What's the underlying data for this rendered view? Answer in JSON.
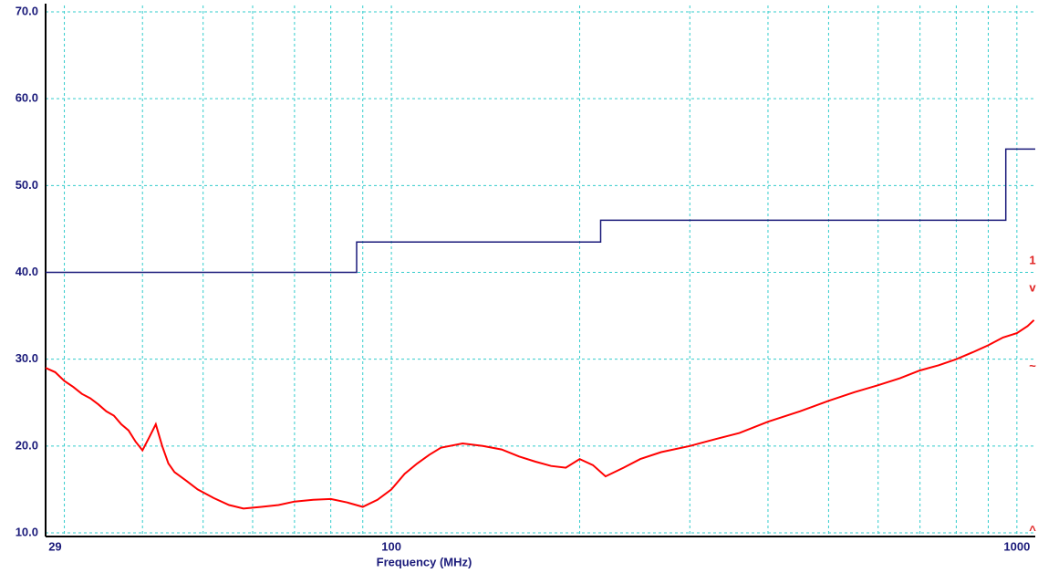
{
  "chart_data": {
    "type": "line",
    "x_label": "Frequency (MHz)",
    "xlog": true,
    "xlim": [
      28,
      1070
    ],
    "xticks": [
      29,
      100,
      1000
    ],
    "xgrid": [
      30,
      40,
      50,
      60,
      70,
      80,
      90,
      100,
      200,
      300,
      400,
      500,
      600,
      700,
      800,
      900,
      1000
    ],
    "ylim": [
      10,
      70
    ],
    "yticks": [
      {
        "value": 10,
        "label": "10.0"
      },
      {
        "value": 20,
        "label": "20.0"
      },
      {
        "value": 30,
        "label": "30.0"
      },
      {
        "value": 40,
        "label": "40.0"
      },
      {
        "value": 50,
        "label": "50.0"
      },
      {
        "value": 60,
        "label": "60.0"
      },
      {
        "value": 70,
        "label": "70.0"
      }
    ],
    "grid": true,
    "series": [
      {
        "color": "#1a1a7a",
        "x": [
          28,
          88,
          88,
          216,
          216,
          960,
          960,
          1070
        ],
        "values": [
          40,
          40,
          43.5,
          43.5,
          46,
          46,
          54.2,
          54.2
        ]
      },
      {
        "color": "#ff0000",
        "x": [
          28,
          29,
          30,
          31,
          32,
          33,
          34,
          35,
          36,
          37,
          38,
          39,
          40,
          41,
          42,
          43,
          44,
          45,
          47,
          49,
          52,
          55,
          58,
          62,
          66,
          70,
          75,
          80,
          85,
          90,
          95,
          100,
          105,
          110,
          115,
          120,
          130,
          140,
          150,
          160,
          170,
          180,
          190,
          200,
          210,
          220,
          235,
          250,
          270,
          300,
          330,
          360,
          400,
          450,
          500,
          550,
          600,
          650,
          700,
          750,
          800,
          850,
          900,
          950,
          1000,
          1040,
          1065
        ],
        "values": [
          29,
          28.5,
          27.5,
          26.8,
          26,
          25.5,
          24.8,
          24,
          23.5,
          22.5,
          21.8,
          20.5,
          19.5,
          21,
          22.5,
          20,
          18,
          17,
          16,
          15,
          14,
          13.2,
          12.8,
          13,
          13.2,
          13.6,
          13.8,
          13.9,
          13.5,
          13,
          13.8,
          15,
          16.8,
          18,
          19,
          19.8,
          20.3,
          20,
          19.6,
          18.8,
          18.2,
          17.7,
          17.5,
          18.5,
          17.8,
          16.5,
          17.5,
          18.5,
          19.3,
          20,
          20.8,
          21.5,
          22.8,
          24,
          25.2,
          26.2,
          27,
          27.8,
          28.7,
          29.3,
          30,
          30.8,
          31.6,
          32.5,
          33,
          33.8,
          34.5
        ]
      }
    ],
    "markers": [
      "1",
      "v",
      "~",
      "^"
    ]
  }
}
